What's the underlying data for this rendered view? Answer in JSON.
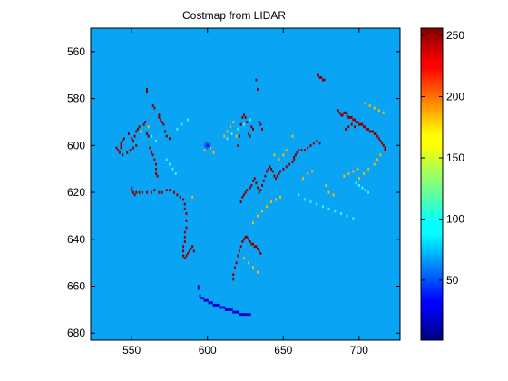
{
  "chart_data": {
    "type": "heatmap",
    "title": "Costmap from LIDAR",
    "xlabel": "",
    "ylabel": "",
    "xlim": [
      523,
      727
    ],
    "ylim": [
      683,
      550
    ],
    "y_axis_direction": "reversed",
    "xticks": [
      550,
      600,
      650,
      700
    ],
    "yticks": [
      560,
      580,
      600,
      620,
      640,
      660,
      680
    ],
    "colormap": "jet",
    "clim": [
      0,
      255
    ],
    "colorbar_ticks": [
      50,
      100,
      150,
      200,
      250
    ],
    "background_value": 40,
    "background_color": "#0aa4f5",
    "grid": false,
    "marker": {
      "symbol": "*",
      "x": 600,
      "y": 600,
      "color": "#2020ff"
    },
    "obstacle_value": 255,
    "obstacle_cells": [
      [
        560,
        576
      ],
      [
        560,
        577
      ],
      [
        564,
        583
      ],
      [
        565,
        584
      ],
      [
        568,
        587
      ],
      [
        568,
        588
      ],
      [
        569,
        589
      ],
      [
        570,
        590
      ],
      [
        571,
        591
      ],
      [
        572,
        594
      ],
      [
        573,
        596
      ],
      [
        575,
        597
      ],
      [
        543,
        599
      ],
      [
        543,
        600
      ],
      [
        543,
        601
      ],
      [
        544,
        598
      ],
      [
        545,
        597
      ],
      [
        548,
        595
      ],
      [
        550,
        597
      ],
      [
        551,
        598
      ],
      [
        552,
        596
      ],
      [
        553,
        594
      ],
      [
        554,
        593
      ],
      [
        555,
        592
      ],
      [
        558,
        591
      ],
      [
        559,
        590
      ],
      [
        560,
        595
      ],
      [
        561,
        596
      ],
      [
        562,
        601
      ],
      [
        563,
        603
      ],
      [
        564,
        604
      ],
      [
        565,
        606
      ],
      [
        566,
        608
      ],
      [
        566,
        610
      ],
      [
        566,
        612
      ],
      [
        567,
        613
      ],
      [
        550,
        618
      ],
      [
        550,
        619
      ],
      [
        551,
        620
      ],
      [
        552,
        621
      ],
      [
        553,
        620
      ],
      [
        555,
        620
      ],
      [
        557,
        620
      ],
      [
        560,
        620
      ],
      [
        563,
        620
      ],
      [
        565,
        619
      ],
      [
        568,
        620
      ],
      [
        570,
        620
      ],
      [
        573,
        619
      ],
      [
        575,
        619
      ],
      [
        578,
        620
      ],
      [
        580,
        621
      ],
      [
        582,
        622
      ],
      [
        584,
        623
      ],
      [
        585,
        625
      ],
      [
        585,
        627
      ],
      [
        586,
        629
      ],
      [
        586,
        632
      ],
      [
        586,
        635
      ],
      [
        585,
        637
      ],
      [
        585,
        639
      ],
      [
        585,
        641
      ],
      [
        584,
        643
      ],
      [
        584,
        645
      ],
      [
        584,
        647
      ],
      [
        585,
        648
      ],
      [
        586,
        647
      ],
      [
        587,
        646
      ],
      [
        588,
        645
      ],
      [
        589,
        644
      ],
      [
        590,
        643
      ],
      [
        591,
        645
      ],
      [
        620,
        600
      ],
      [
        621,
        596
      ],
      [
        622,
        591
      ],
      [
        623,
        588
      ],
      [
        624,
        587
      ],
      [
        625,
        588
      ],
      [
        626,
        590
      ],
      [
        627,
        595
      ],
      [
        628,
        596
      ],
      [
        629,
        592
      ],
      [
        630,
        593
      ],
      [
        632,
        572
      ],
      [
        633,
        576
      ],
      [
        634,
        590
      ],
      [
        635,
        591
      ],
      [
        636,
        593
      ],
      [
        622,
        624
      ],
      [
        623,
        622
      ],
      [
        624,
        621
      ],
      [
        625,
        620
      ],
      [
        626,
        619
      ],
      [
        628,
        618
      ],
      [
        629,
        617
      ],
      [
        630,
        615
      ],
      [
        631,
        614
      ],
      [
        632,
        616
      ],
      [
        633,
        618
      ],
      [
        634,
        620
      ],
      [
        635,
        619
      ],
      [
        636,
        617
      ],
      [
        637,
        615
      ],
      [
        638,
        613
      ],
      [
        639,
        611
      ],
      [
        640,
        610
      ],
      [
        641,
        609
      ],
      [
        642,
        610
      ],
      [
        643,
        611
      ],
      [
        644,
        613
      ],
      [
        645,
        614
      ],
      [
        646,
        613
      ],
      [
        647,
        612
      ],
      [
        648,
        611
      ],
      [
        650,
        610
      ],
      [
        652,
        609
      ],
      [
        654,
        608
      ],
      [
        656,
        607
      ],
      [
        657,
        606
      ],
      [
        657,
        605
      ],
      [
        658,
        604
      ],
      [
        659,
        603
      ],
      [
        660,
        602
      ],
      [
        662,
        602
      ],
      [
        664,
        602
      ],
      [
        666,
        601
      ],
      [
        668,
        600
      ],
      [
        670,
        599
      ],
      [
        672,
        598
      ],
      [
        674,
        599
      ],
      [
        617,
        657
      ],
      [
        617,
        655
      ],
      [
        618,
        652
      ],
      [
        619,
        650
      ],
      [
        620,
        647
      ],
      [
        621,
        645
      ],
      [
        622,
        643
      ],
      [
        623,
        641
      ],
      [
        624,
        640
      ],
      [
        625,
        639
      ],
      [
        626,
        639
      ],
      [
        627,
        640
      ],
      [
        628,
        641
      ],
      [
        629,
        642
      ],
      [
        630,
        642
      ],
      [
        631,
        643
      ],
      [
        632,
        643
      ],
      [
        633,
        644
      ],
      [
        634,
        645
      ],
      [
        635,
        646
      ],
      [
        673,
        570
      ],
      [
        674,
        571
      ],
      [
        675,
        571
      ],
      [
        676,
        572
      ],
      [
        677,
        572
      ],
      [
        686,
        585
      ],
      [
        687,
        586
      ],
      [
        688,
        587
      ],
      [
        689,
        587
      ],
      [
        690,
        586
      ],
      [
        691,
        586
      ],
      [
        692,
        587
      ],
      [
        693,
        588
      ],
      [
        694,
        588
      ],
      [
        695,
        588
      ],
      [
        696,
        589
      ],
      [
        697,
        589
      ],
      [
        698,
        590
      ],
      [
        699,
        590
      ],
      [
        700,
        591
      ],
      [
        701,
        591
      ],
      [
        702,
        591
      ],
      [
        703,
        592
      ],
      [
        704,
        592
      ],
      [
        705,
        593
      ],
      [
        706,
        593
      ],
      [
        707,
        594
      ],
      [
        708,
        594
      ],
      [
        709,
        594
      ],
      [
        710,
        595
      ],
      [
        711,
        595
      ],
      [
        712,
        596
      ],
      [
        713,
        597
      ],
      [
        714,
        598
      ],
      [
        715,
        599
      ],
      [
        716,
        600
      ],
      [
        717,
        601
      ],
      [
        717,
        602
      ],
      [
        691,
        593
      ],
      [
        693,
        592
      ],
      [
        695,
        591
      ],
      [
        697,
        592
      ],
      [
        540,
        601
      ],
      [
        541,
        602
      ],
      [
        542,
        603
      ],
      [
        544,
        604
      ],
      [
        547,
        603
      ],
      [
        549,
        602
      ],
      [
        551,
        601
      ],
      [
        553,
        600
      ]
    ],
    "medium_cells": [
      [
        556,
        594
      ],
      [
        561,
        592
      ],
      [
        590,
        622
      ],
      [
        598,
        602
      ],
      [
        602,
        601
      ],
      [
        604,
        603
      ],
      [
        611,
        596
      ],
      [
        613,
        594
      ],
      [
        615,
        592
      ],
      [
        617,
        590
      ],
      [
        619,
        596
      ],
      [
        644,
        604
      ],
      [
        647,
        606
      ],
      [
        650,
        604
      ],
      [
        652,
        602
      ],
      [
        656,
        596
      ],
      [
        663,
        614
      ],
      [
        666,
        612
      ],
      [
        669,
        611
      ],
      [
        678,
        617
      ],
      [
        680,
        620
      ],
      [
        683,
        621
      ],
      [
        690,
        613
      ],
      [
        693,
        612
      ],
      [
        696,
        611
      ],
      [
        699,
        610
      ],
      [
        700,
        614
      ],
      [
        703,
        612
      ],
      [
        706,
        610
      ],
      [
        710,
        608
      ],
      [
        712,
        606
      ],
      [
        714,
        604
      ],
      [
        630,
        633
      ],
      [
        633,
        630
      ],
      [
        636,
        628
      ],
      [
        639,
        626
      ],
      [
        642,
        624
      ],
      [
        645,
        623
      ],
      [
        648,
        622
      ],
      [
        704,
        582
      ],
      [
        707,
        583
      ],
      [
        710,
        584
      ],
      [
        713,
        585
      ],
      [
        716,
        586
      ],
      [
        624,
        648
      ],
      [
        627,
        650
      ],
      [
        630,
        652
      ],
      [
        633,
        654
      ]
    ],
    "cyan_cells": [
      [
        563,
        596
      ],
      [
        566,
        598
      ],
      [
        580,
        593
      ],
      [
        583,
        591
      ],
      [
        587,
        589
      ],
      [
        613,
        597
      ],
      [
        616,
        595
      ],
      [
        620,
        593
      ],
      [
        624,
        591
      ],
      [
        628,
        589
      ],
      [
        660,
        621
      ],
      [
        664,
        623
      ],
      [
        668,
        624
      ],
      [
        672,
        625
      ],
      [
        676,
        626
      ],
      [
        680,
        627
      ],
      [
        684,
        628
      ],
      [
        688,
        629
      ],
      [
        692,
        630
      ],
      [
        696,
        631
      ],
      [
        698,
        616
      ],
      [
        700,
        617
      ],
      [
        702,
        618
      ],
      [
        704,
        619
      ],
      [
        706,
        620
      ],
      [
        573,
        606
      ],
      [
        575,
        608
      ],
      [
        577,
        610
      ],
      [
        579,
        612
      ]
    ],
    "line_cells": [
      [
        594,
        660
      ],
      [
        594,
        661
      ],
      [
        595,
        664
      ],
      [
        596,
        665
      ],
      [
        597,
        665
      ],
      [
        598,
        666
      ],
      [
        599,
        666
      ],
      [
        600,
        666
      ],
      [
        601,
        667
      ],
      [
        602,
        667
      ],
      [
        603,
        667
      ],
      [
        604,
        668
      ],
      [
        605,
        668
      ],
      [
        606,
        668
      ],
      [
        607,
        668
      ],
      [
        608,
        669
      ],
      [
        609,
        669
      ],
      [
        610,
        669
      ],
      [
        611,
        669
      ],
      [
        612,
        670
      ],
      [
        613,
        670
      ],
      [
        614,
        670
      ],
      [
        615,
        670
      ],
      [
        616,
        670
      ],
      [
        617,
        671
      ],
      [
        618,
        671
      ],
      [
        619,
        671
      ],
      [
        620,
        671
      ],
      [
        621,
        672
      ],
      [
        622,
        672
      ],
      [
        623,
        672
      ],
      [
        624,
        672
      ],
      [
        625,
        672
      ],
      [
        626,
        672
      ],
      [
        627,
        672
      ],
      [
        628,
        672
      ]
    ],
    "line_value": 5
  }
}
